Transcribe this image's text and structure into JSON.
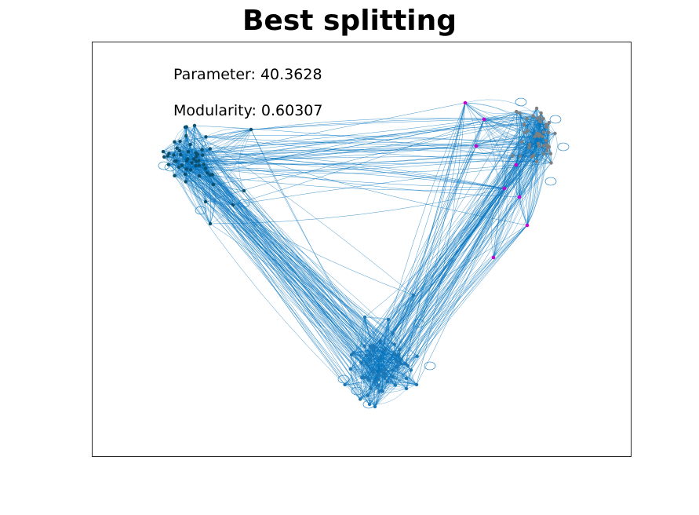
{
  "title": "Best splitting",
  "annotations": {
    "parameter_label": "Parameter:",
    "parameter_value": "40.3628",
    "modularity_label": "Modularity:",
    "modularity_value": "0.60307"
  },
  "colors": {
    "edge": "#0072BD",
    "community_left": "#0b4f6c",
    "community_bottom": "#1f77b4",
    "community_right": "#7f7f7f",
    "community_right_boundary": "#cc00cc",
    "axes_border": "#262626"
  },
  "graph": {
    "type": "network",
    "communities": [
      "left",
      "bottom",
      "right"
    ]
  }
}
